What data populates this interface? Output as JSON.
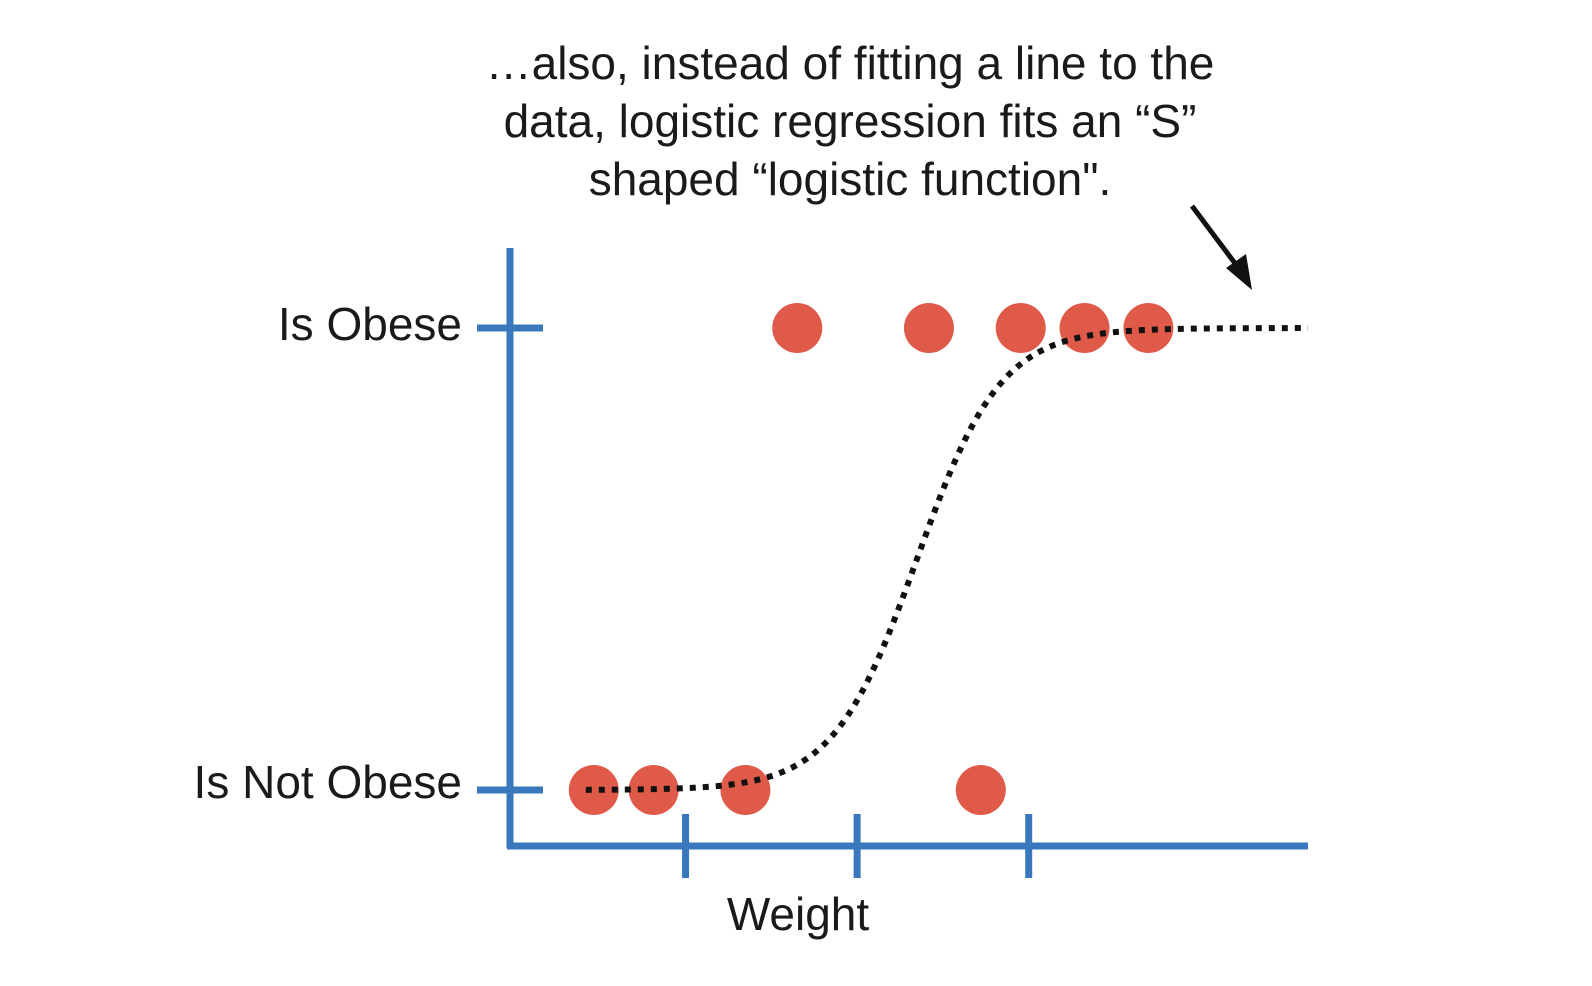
{
  "annotation": {
    "lines": [
      "…also, instead of fitting a line to the",
      "data, logistic regression fits an “S”",
      "shaped “logistic function\"."
    ]
  },
  "chart_data": {
    "type": "scatter",
    "xlabel": "Weight",
    "ylabel": "",
    "categories_y": [
      "Is Not Obese",
      "Is Obese"
    ],
    "xlim": [
      0,
      100
    ],
    "ylim": [
      0,
      1
    ],
    "x_ticks": [
      22,
      43.5,
      65
    ],
    "points": [
      {
        "x": 10.5,
        "y": 0
      },
      {
        "x": 18,
        "y": 0
      },
      {
        "x": 29.5,
        "y": 0
      },
      {
        "x": 59,
        "y": 0
      },
      {
        "x": 36,
        "y": 1
      },
      {
        "x": 52.5,
        "y": 1
      },
      {
        "x": 64,
        "y": 1
      },
      {
        "x": 72,
        "y": 1
      },
      {
        "x": 80,
        "y": 1
      }
    ],
    "curve": {
      "type": "logistic",
      "style": "dotted",
      "x_range": [
        9.5,
        100
      ],
      "midpoint": 51,
      "steepness": 0.19
    },
    "grid": false,
    "colors": {
      "axis": "#3a78bd",
      "points": "#e05a4a",
      "curve": "#111111"
    }
  }
}
